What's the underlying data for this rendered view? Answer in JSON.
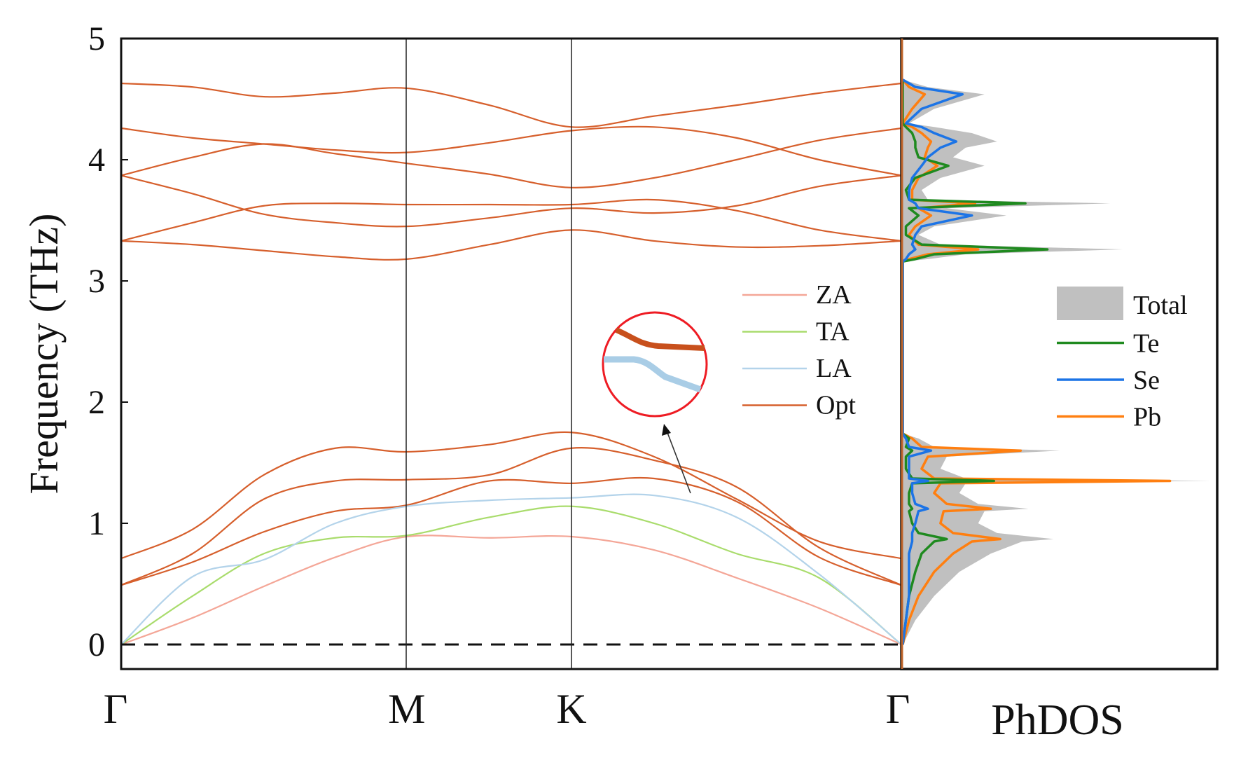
{
  "chart_data": [
    {
      "type": "line",
      "ylabel": "Frequency (THz)",
      "ylim": [
        -0.2,
        5
      ],
      "yticks": [
        "0",
        "1",
        "2",
        "3",
        "4",
        "5"
      ],
      "x_high_symmetry": [
        {
          "label": "Γ",
          "x": 0
        },
        {
          "label": "M",
          "x": 1
        },
        {
          "label": "K",
          "x": 1.577
        },
        {
          "label": "Γ",
          "x": 2.732
        }
      ],
      "grid": false,
      "zero_line": "dashed",
      "legend_placement": "center-right",
      "k": [
        0,
        0.25,
        0.5,
        0.75,
        1,
        1.29,
        1.577,
        1.866,
        2.155,
        2.444,
        2.732
      ],
      "series": [
        {
          "name": "ZA",
          "color": "#f4a697",
          "bands": [
            [
              0,
              0.22,
              0.48,
              0.72,
              0.89,
              0.88,
              0.89,
              0.78,
              0.55,
              0.3,
              0
            ]
          ]
        },
        {
          "name": "TA",
          "color": "#a9dc6c",
          "bands": [
            [
              0,
              0.4,
              0.75,
              0.88,
              0.9,
              1.05,
              1.14,
              1.0,
              0.75,
              0.55,
              0
            ]
          ]
        },
        {
          "name": "LA",
          "color": "#b3d3ea",
          "bands": [
            [
              0,
              0.56,
              0.7,
              1.0,
              1.14,
              1.19,
              1.21,
              1.23,
              1.05,
              0.58,
              0
            ]
          ]
        },
        {
          "name": "Opt",
          "color": "#d65f2c",
          "bands": [
            [
              0.71,
              0.95,
              1.4,
              1.62,
              1.59,
              1.65,
              1.75,
              1.55,
              1.2,
              0.85,
              0.71
            ],
            [
              0.49,
              0.75,
              1.2,
              1.35,
              1.36,
              1.4,
              1.62,
              1.52,
              1.3,
              0.8,
              0.49
            ],
            [
              0.49,
              0.68,
              0.93,
              1.1,
              1.15,
              1.35,
              1.33,
              1.37,
              1.18,
              0.72,
              0.49
            ],
            [
              3.33,
              3.3,
              3.25,
              3.2,
              3.18,
              3.3,
              3.42,
              3.33,
              3.28,
              3.29,
              3.33
            ],
            [
              3.33,
              3.48,
              3.62,
              3.64,
              3.63,
              3.63,
              3.63,
              3.67,
              3.58,
              3.42,
              3.33
            ],
            [
              3.87,
              3.72,
              3.55,
              3.48,
              3.45,
              3.52,
              3.6,
              3.56,
              3.62,
              3.78,
              3.87
            ],
            [
              3.87,
              4.02,
              4.13,
              4.05,
              3.97,
              3.88,
              3.77,
              3.85,
              4.0,
              4.16,
              4.26
            ],
            [
              4.26,
              4.18,
              4.13,
              4.08,
              4.06,
              4.14,
              4.24,
              4.27,
              4.18,
              4.0,
              3.87
            ],
            [
              4.63,
              4.6,
              4.52,
              4.55,
              4.59,
              4.45,
              4.27,
              4.36,
              4.45,
              4.55,
              4.63
            ]
          ]
        }
      ],
      "inset": "magnified view of LA and optical branch near crossing"
    },
    {
      "type": "area",
      "xlabel": "PhDOS",
      "xlim": [
        0,
        1
      ],
      "ylim": [
        -0.2,
        5
      ],
      "legend_placement": "center-right",
      "frequency": [
        0,
        0.2,
        0.4,
        0.6,
        0.75,
        0.85,
        0.87,
        0.92,
        1.0,
        1.1,
        1.12,
        1.16,
        1.25,
        1.33,
        1.35,
        1.37,
        1.45,
        1.55,
        1.6,
        1.63,
        1.7,
        1.74,
        3.16,
        3.18,
        3.22,
        3.26,
        3.3,
        3.38,
        3.45,
        3.54,
        3.6,
        3.64,
        3.67,
        3.75,
        3.85,
        3.95,
        4.02,
        4.1,
        4.15,
        4.22,
        4.27,
        4.3,
        4.42,
        4.54,
        4.6,
        4.66
      ],
      "series": [
        {
          "name": "Total",
          "color": "#c0c0c0",
          "values": [
            0,
            0.04,
            0.1,
            0.18,
            0.28,
            0.38,
            0.48,
            0.3,
            0.24,
            0.26,
            0.4,
            0.24,
            0.18,
            0.2,
            0.98,
            0.2,
            0.12,
            0.14,
            0.5,
            0.1,
            0.05,
            0,
            0,
            0.08,
            0.2,
            0.7,
            0.12,
            0.05,
            0.1,
            0.33,
            0.14,
            0.66,
            0.08,
            0.06,
            0.12,
            0.26,
            0.16,
            0.2,
            0.3,
            0.22,
            0.1,
            0.02,
            0.1,
            0.26,
            0.08,
            0
          ]
        },
        {
          "name": "Te",
          "color": "#1f8a1f",
          "values": [
            0,
            0.01,
            0.02,
            0.04,
            0.06,
            0.1,
            0.14,
            0.05,
            0.03,
            0.02,
            0.03,
            0.02,
            0.02,
            0.03,
            0.29,
            0.03,
            0.01,
            0.01,
            0.03,
            0.01,
            0.02,
            0,
            0,
            0.04,
            0.1,
            0.46,
            0.06,
            0.01,
            0.01,
            0.05,
            0.02,
            0.39,
            0.02,
            0.01,
            0.04,
            0.145,
            0.05,
            0.04,
            0.04,
            0.03,
            0.01,
            0,
            0,
            0,
            0,
            0
          ]
        },
        {
          "name": "Se",
          "color": "#1c74e6",
          "values": [
            0,
            0.01,
            0.02,
            0.02,
            0.02,
            0.03,
            0.03,
            0.03,
            0.04,
            0.05,
            0.08,
            0.04,
            0.03,
            0.03,
            0.08,
            0.02,
            0.02,
            0.02,
            0.09,
            0.02,
            0.01,
            0,
            0,
            0.01,
            0.02,
            0.04,
            0.03,
            0.04,
            0.06,
            0.22,
            0.05,
            0.04,
            0.02,
            0.02,
            0.03,
            0.06,
            0.08,
            0.12,
            0.17,
            0.1,
            0.06,
            0.01,
            0.06,
            0.19,
            0.04,
            0
          ]
        },
        {
          "name": "Pb",
          "color": "#ff7f10",
          "values": [
            0,
            0.02,
            0.05,
            0.1,
            0.16,
            0.22,
            0.31,
            0.16,
            0.12,
            0.13,
            0.28,
            0.14,
            0.1,
            0.12,
            0.85,
            0.1,
            0.06,
            0.08,
            0.375,
            0.06,
            0.03,
            0,
            0,
            0.02,
            0.08,
            0.24,
            0.05,
            0.02,
            0.04,
            0.09,
            0.05,
            0.23,
            0.03,
            0.03,
            0.05,
            0.11,
            0.07,
            0.08,
            0.09,
            0.06,
            0.03,
            0,
            0.03,
            0.07,
            0.02,
            0
          ]
        }
      ]
    }
  ]
}
